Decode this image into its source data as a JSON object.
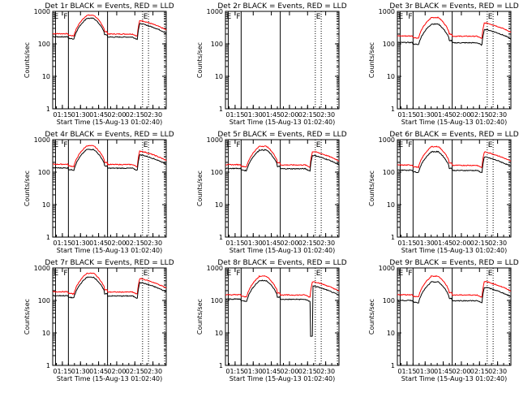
{
  "figure": {
    "xlabel": "Start Time (15-Aug-13 01:02:40)",
    "ylabel": "Counts/sec",
    "colors": {
      "events": "#000000",
      "lld": "#ff0000",
      "axis": "#000000"
    }
  },
  "chart_data": [
    {
      "type": "line",
      "title": "Det 1r BLACK = Events, RED = LLD",
      "has_data": true,
      "ev_base": 165,
      "lld_base": 205,
      "dip": false
    },
    {
      "type": "line",
      "title": "Det 2r BLACK = Events, RED = LLD",
      "has_data": false,
      "ev_base": 0,
      "lld_base": 0,
      "dip": false
    },
    {
      "type": "line",
      "title": "Det 3r BLACK = Events, RED = LLD",
      "has_data": true,
      "ev_base": 110,
      "lld_base": 175,
      "dip": false
    },
    {
      "type": "line",
      "title": "Det 4r BLACK = Events, RED = LLD",
      "has_data": true,
      "ev_base": 135,
      "lld_base": 175,
      "dip": false
    },
    {
      "type": "line",
      "title": "Det 5r BLACK = Events, RED = LLD",
      "has_data": true,
      "ev_base": 130,
      "lld_base": 170,
      "dip": false
    },
    {
      "type": "line",
      "title": "Det 6r BLACK = Events, RED = LLD",
      "has_data": true,
      "ev_base": 115,
      "lld_base": 165,
      "dip": false
    },
    {
      "type": "line",
      "title": "Det 7r BLACK = Events, RED = LLD",
      "has_data": true,
      "ev_base": 140,
      "lld_base": 185,
      "dip": false
    },
    {
      "type": "line",
      "title": "Det 8r BLACK = Events, RED = LLD",
      "has_data": true,
      "ev_base": 110,
      "lld_base": 150,
      "dip": true
    },
    {
      "type": "line",
      "title": "Det 9r BLACK = Events, RED = LLD",
      "has_data": true,
      "ev_base": 100,
      "lld_base": 150,
      "dip": false
    }
  ],
  "axes": {
    "xlim_min": [
      67,
      161
    ],
    "yscale": "log",
    "ylim": [
      1,
      1000
    ],
    "yticks": [
      {
        "v": 1,
        "label": "1"
      },
      {
        "v": 10,
        "label": "10"
      },
      {
        "v": 100,
        "label": "100"
      },
      {
        "v": 1000,
        "label": "1000"
      }
    ],
    "xticks": [
      {
        "v": 75,
        "label": "01:15"
      },
      {
        "v": 90,
        "label": "01:30"
      },
      {
        "v": 105,
        "label": "01:45"
      },
      {
        "v": 120,
        "label": "02:00"
      },
      {
        "v": 135,
        "label": "02:15"
      },
      {
        "v": 150,
        "label": "02:30"
      }
    ]
  },
  "markers": {
    "solid_lines": [
      69.3,
      80,
      112.4
    ],
    "dotted_lines": [
      141.4,
      146.3,
      159.7
    ],
    "letters": [
      {
        "text": "E",
        "x": 68
      },
      {
        "text": "F",
        "x": 76
      },
      {
        "text": "E",
        "x": 142
      }
    ]
  }
}
